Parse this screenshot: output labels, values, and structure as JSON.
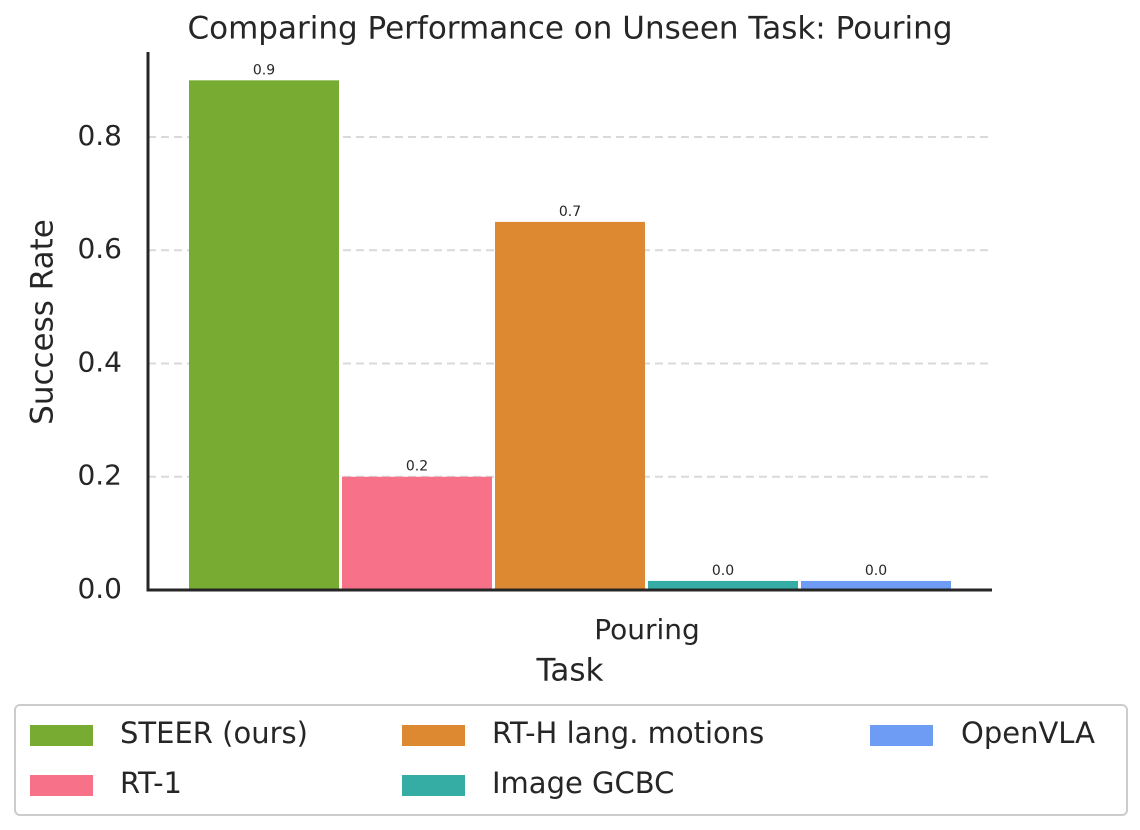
{
  "chart_data": {
    "type": "bar",
    "title": "Comparing Performance on Unseen Task: Pouring",
    "x_label": "Task",
    "y_label": "Success Rate",
    "categories": [
      "Pouring"
    ],
    "series": [
      {
        "name": "STEER (ours)",
        "color": "#77ab31",
        "values": [
          0.9
        ],
        "value_labels": [
          "0.9"
        ]
      },
      {
        "name": "RT-1",
        "color": "#f77189",
        "values": [
          0.2
        ],
        "value_labels": [
          "0.2"
        ]
      },
      {
        "name": "RT-H lang. motions",
        "color": "#dc8932",
        "values": [
          0.65
        ],
        "value_labels": [
          "0.7"
        ]
      },
      {
        "name": "Image GCBC",
        "color": "#36ada4",
        "values": [
          0.016
        ],
        "value_labels": [
          "0.0"
        ]
      },
      {
        "name": "OpenVLA",
        "color": "#6e9bf4",
        "values": [
          0.016
        ],
        "value_labels": [
          "0.0"
        ]
      }
    ],
    "ylim": [
      0,
      0.95
    ],
    "yticks": [
      {
        "value": 0,
        "label": "0.0"
      },
      0.2,
      0.4,
      0.6,
      0.8
    ],
    "grid": true,
    "legend": "bottom"
  }
}
